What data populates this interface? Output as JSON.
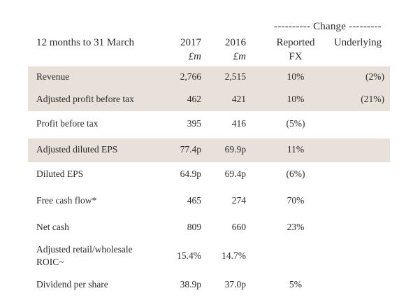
{
  "header": {
    "change": "---------- Change ---------",
    "period_label": "12 months to 31 March",
    "col_2017": "2017",
    "col_2016": "2016",
    "unit_2017": "£m",
    "unit_2016": "£m",
    "reported_line1": "Reported",
    "reported_line2": "FX",
    "underlying": "Underlying"
  },
  "rows": [
    {
      "label": "Revenue",
      "label2": "",
      "v2017": "2,766",
      "v2016": "2,515",
      "reported": "10%",
      "underlying": "(2%)"
    },
    {
      "label": "Adjusted profit before tax",
      "label2": "",
      "v2017": "462",
      "v2016": "421",
      "reported": "10%",
      "underlying": "(21%)"
    },
    {
      "label": "Profit before tax",
      "label2": "",
      "v2017": "395",
      "v2016": "416",
      "reported": "(5%)",
      "underlying": ""
    },
    {
      "label": "Adjusted diluted EPS",
      "label2": "",
      "v2017": "77.4p",
      "v2016": "69.9p",
      "reported": "11%",
      "underlying": ""
    },
    {
      "label": "Diluted EPS",
      "label2": "",
      "v2017": "64.9p",
      "v2016": "69.4p",
      "reported": "(6%)",
      "underlying": ""
    },
    {
      "label": "Free cash flow*",
      "label2": "",
      "v2017": "465",
      "v2016": "274",
      "reported": "70%",
      "underlying": ""
    },
    {
      "label": "Net cash",
      "label2": "",
      "v2017": "809",
      "v2016": "660",
      "reported": "23%",
      "underlying": ""
    },
    {
      "label": "Adjusted retail/wholesale",
      "label2": "ROIC~",
      "v2017": "15.4%",
      "v2016": "14.7%",
      "reported": "",
      "underlying": ""
    },
    {
      "label": "Dividend per share",
      "label2": "",
      "v2017": "38.9p",
      "v2016": "37.0p",
      "reported": "5%",
      "underlying": ""
    }
  ]
}
